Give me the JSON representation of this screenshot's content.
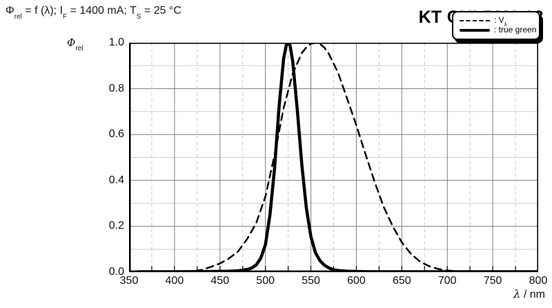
{
  "header": {
    "formula": {
      "p1": "Φ",
      "p1sub": "rel",
      "p2": " = f (λ); I",
      "p2sub": "F",
      "p3": " = 1400 mA; T",
      "p3sub": "S",
      "p4": " = 25 °C"
    },
    "part_number": "KT CULPM1.13"
  },
  "axes": {
    "y_label_main": "Φ",
    "y_label_sub": "rel",
    "x_label_main": "λ",
    "x_label_suffix": " / nm"
  },
  "legend": {
    "items": [
      {
        "label_main": ": V",
        "label_sub": "λ",
        "line_style": "dashed"
      },
      {
        "label_main": ": true green",
        "label_sub": "",
        "line_style": "solid"
      }
    ]
  },
  "chart_data": {
    "type": "line",
    "title": "Φrel = f (λ); IF = 1400 mA; TS = 25 °C",
    "xlabel": "λ / nm",
    "ylabel": "Φrel",
    "xlim": [
      350,
      800
    ],
    "ylim": [
      0.0,
      1.0
    ],
    "x_ticks": [
      "350",
      "400",
      "450",
      "500",
      "550",
      "600",
      "650",
      "700",
      "750",
      "800"
    ],
    "y_ticks": [
      "0.0",
      "0.2",
      "0.4",
      "0.6",
      "0.8",
      "1.0"
    ],
    "x_major_grid_step": 50,
    "x_minor_grid_step": 25,
    "y_major_grid_step": 0.2,
    "y_minor_grid_step": 0.1,
    "grid": "horizontal solid every 0.1 (darker every 0.2); vertical solid every 50 nm, dashed every 25 nm offset",
    "legend_position": "top-right",
    "series": [
      {
        "name": "Vλ",
        "style": "dashed",
        "peak_nm": 555,
        "x": [
          410,
          420,
          430,
          440,
          450,
          460,
          470,
          480,
          490,
          500,
          510,
          520,
          530,
          540,
          545,
          550,
          555,
          560,
          565,
          570,
          580,
          590,
          600,
          610,
          620,
          630,
          640,
          650,
          660,
          670,
          680,
          690,
          700,
          710,
          720
        ],
        "y": [
          0.001,
          0.004,
          0.01,
          0.023,
          0.038,
          0.06,
          0.091,
          0.145,
          0.215,
          0.33,
          0.51,
          0.715,
          0.865,
          0.955,
          0.98,
          0.995,
          1.0,
          0.995,
          0.978,
          0.95,
          0.868,
          0.755,
          0.64,
          0.515,
          0.395,
          0.285,
          0.2,
          0.13,
          0.08,
          0.046,
          0.026,
          0.014,
          0.007,
          0.004,
          0.002
        ]
      },
      {
        "name": "true green",
        "style": "solid",
        "peak_nm": 525,
        "x": [
          360,
          400,
          440,
          460,
          470,
          480,
          485,
          490,
          495,
          500,
          505,
          510,
          515,
          520,
          523,
          525,
          527,
          530,
          535,
          540,
          545,
          550,
          555,
          560,
          565,
          570,
          575,
          580,
          590,
          600,
          620,
          650,
          700,
          750,
          800
        ],
        "y": [
          0.002,
          0.002,
          0.003,
          0.004,
          0.006,
          0.012,
          0.018,
          0.032,
          0.062,
          0.12,
          0.25,
          0.45,
          0.72,
          0.93,
          0.99,
          1.0,
          0.99,
          0.92,
          0.71,
          0.47,
          0.28,
          0.155,
          0.085,
          0.05,
          0.03,
          0.018,
          0.011,
          0.007,
          0.004,
          0.003,
          0.002,
          0.002,
          0.002,
          0.002,
          0.002
        ]
      }
    ],
    "colors": {
      "curve": "#000000",
      "grid_major": "#7d7d7d",
      "grid_minor": "#cccccc",
      "grid_dashed": "#c8c8c8",
      "background": "#ffffff"
    }
  }
}
